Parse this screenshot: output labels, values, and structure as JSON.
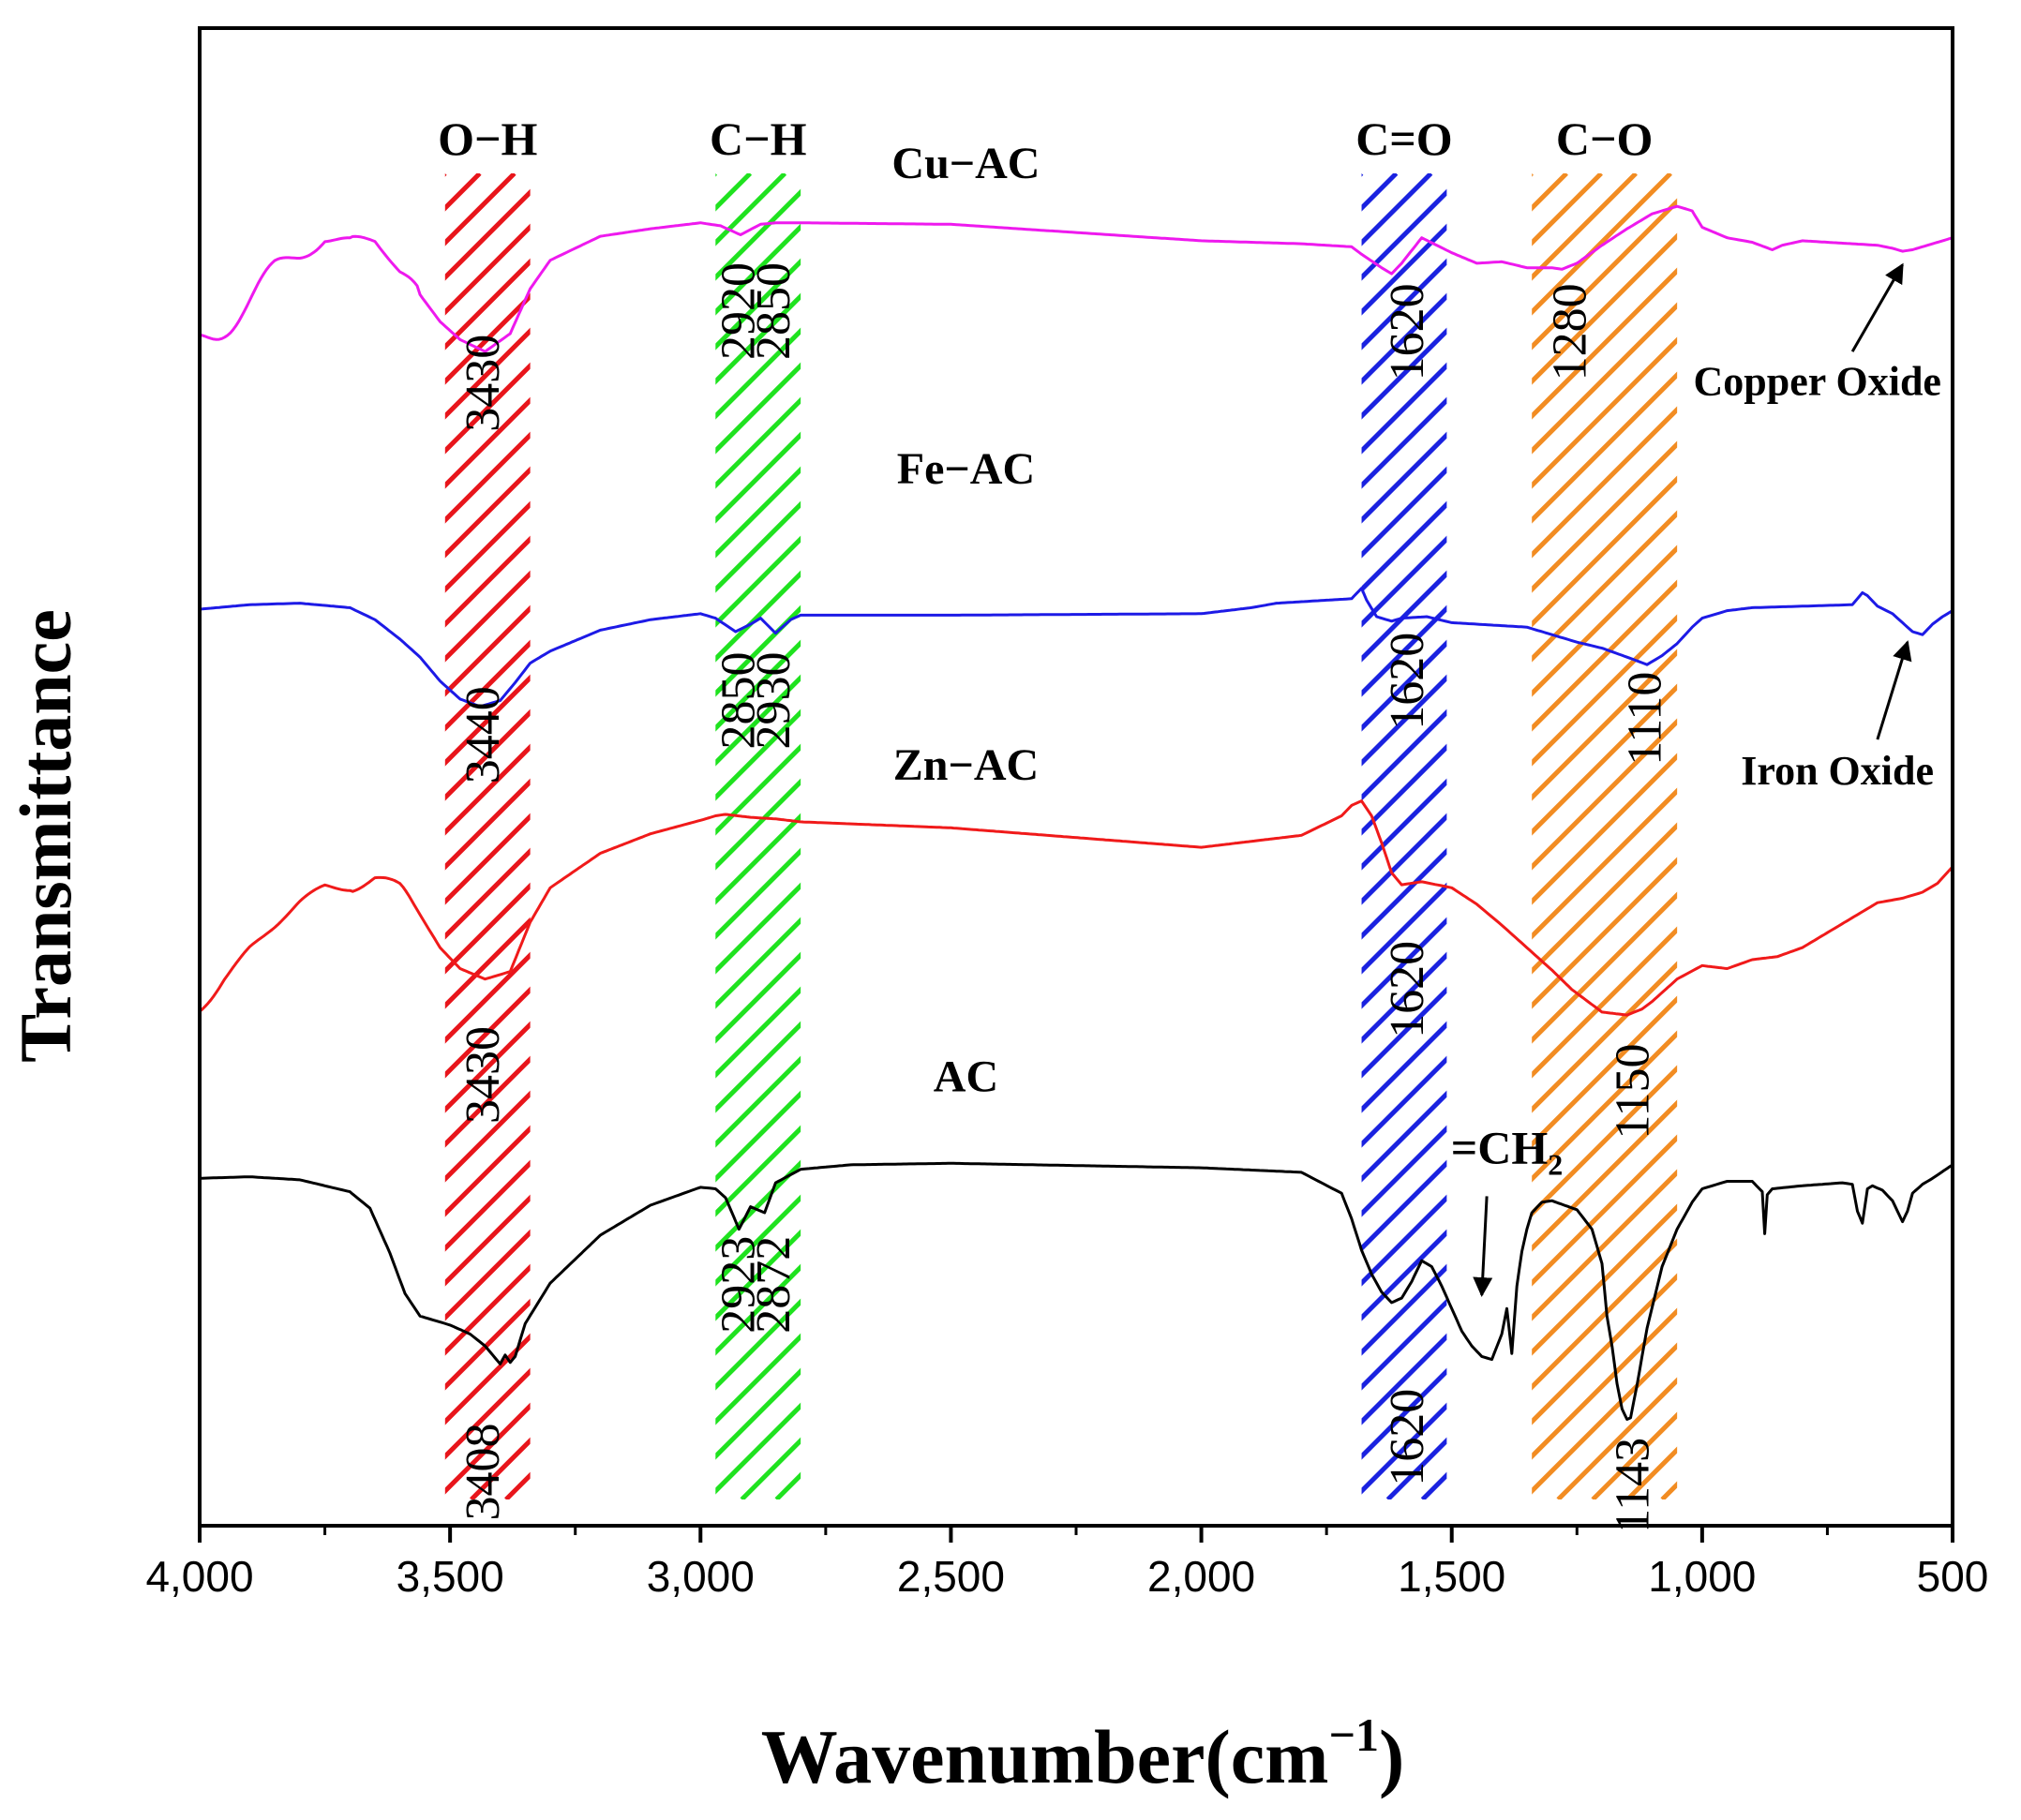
{
  "chart_data": {
    "type": "line",
    "title": "",
    "xlabel": "Wavenumber(cm",
    "xlabel_sup": "−1",
    "xlabel_close": ")",
    "ylabel": "Transmittance",
    "xlim": [
      4000,
      500
    ],
    "ylim": [
      0,
      100
    ],
    "y_ticks_shown": false,
    "x_ticks": [
      4000,
      3500,
      3000,
      2500,
      2000,
      1500,
      1000,
      500
    ],
    "x_tick_labels": [
      "4,000",
      "3,500",
      "3,000",
      "2,500",
      "2,000",
      "1,500",
      "1,000",
      "500"
    ],
    "bands": [
      {
        "label": "O−H",
        "from": 3510,
        "to": 3340,
        "color": "#e8151b"
      },
      {
        "label": "C−H",
        "from": 2970,
        "to": 2800,
        "color": "#1fe21f"
      },
      {
        "label": "C=O",
        "from": 1680,
        "to": 1510,
        "color": "#1a22e0"
      },
      {
        "label": "C−O",
        "from": 1340,
        "to": 1050,
        "color": "#f28c22"
      }
    ],
    "series": [
      {
        "name": "Cu−AC",
        "color": "#ee19ee",
        "noise": "left",
        "x": [
          4000,
          3950,
          3900,
          3850,
          3800,
          3750,
          3700,
          3650,
          3600,
          3560,
          3520,
          3480,
          3430,
          3380,
          3340,
          3300,
          3200,
          3100,
          3000,
          2960,
          2920,
          2880,
          2850,
          2800,
          2500,
          2000,
          1800,
          1700,
          1680,
          1640,
          1620,
          1600,
          1560,
          1500,
          1450,
          1400,
          1350,
          1300,
          1280,
          1250,
          1200,
          1150,
          1100,
          1050,
          1020,
          1000,
          950,
          900,
          860,
          840,
          800,
          700,
          650,
          620,
          600,
          580,
          550,
          500
        ],
        "y": [
          78.8,
          80.5,
          82,
          83.6,
          84.8,
          86.2,
          85.8,
          85.6,
          83.8,
          82.2,
          80.4,
          79.2,
          78.4,
          79.6,
          82.6,
          84.5,
          86.1,
          86.6,
          87,
          86.8,
          86.2,
          86.9,
          87.0,
          87.0,
          86.9,
          85.8,
          85.6,
          85.4,
          84.9,
          84.0,
          83.6,
          84.3,
          86.0,
          85.0,
          84.3,
          84.4,
          84.0,
          84.0,
          83.9,
          84.3,
          85.5,
          86.6,
          87.6,
          88.1,
          87.8,
          86.7,
          86,
          85.7,
          85.2,
          85.5,
          85.8,
          85.6,
          85.5,
          85.3,
          85.1,
          85.2,
          85.5,
          86.0
        ]
      },
      {
        "name": "Fe−AC",
        "color": "#1d1ae6",
        "noise": "none",
        "x": [
          4000,
          3900,
          3800,
          3700,
          3650,
          3600,
          3560,
          3520,
          3480,
          3440,
          3400,
          3370,
          3340,
          3300,
          3200,
          3100,
          3000,
          2970,
          2930,
          2900,
          2880,
          2850,
          2820,
          2800,
          2500,
          2000,
          1900,
          1850,
          1800,
          1750,
          1700,
          1680,
          1670,
          1650,
          1620,
          1600,
          1550,
          1500,
          1450,
          1350,
          1300,
          1250,
          1200,
          1150,
          1110,
          1080,
          1050,
          1020,
          1000,
          950,
          900,
          800,
          700,
          680,
          670,
          650,
          620,
          600,
          580,
          560,
          540,
          520,
          500
        ],
        "y": [
          61.2,
          61.5,
          61.6,
          61.3,
          60.5,
          59.2,
          58,
          56.4,
          55.2,
          54.7,
          55.1,
          56.3,
          57.6,
          58.4,
          59.8,
          60.5,
          60.9,
          60.6,
          59.7,
          60.2,
          60.6,
          59.6,
          60.5,
          60.8,
          60.8,
          60.9,
          61.3,
          61.6,
          61.7,
          61.8,
          61.9,
          62.6,
          61.8,
          60.7,
          60.4,
          60.6,
          60.7,
          60.3,
          60.2,
          60.0,
          59.5,
          59.0,
          58.6,
          58.0,
          57.5,
          58.1,
          58.9,
          60.0,
          60.6,
          61.1,
          61.3,
          61.4,
          61.5,
          62.3,
          62.1,
          61.4,
          60.9,
          60.3,
          59.7,
          59.5,
          60.2,
          60.7,
          61.1
        ]
      },
      {
        "name": "Zn−AC",
        "color": "#f01a1a",
        "noise": "left",
        "x": [
          4000,
          3950,
          3900,
          3850,
          3800,
          3750,
          3700,
          3650,
          3600,
          3560,
          3520,
          3480,
          3430,
          3380,
          3340,
          3300,
          3200,
          3100,
          3000,
          2970,
          2950,
          2900,
          2850,
          2800,
          2500,
          2000,
          1800,
          1720,
          1700,
          1680,
          1660,
          1640,
          1620,
          1600,
          1560,
          1500,
          1450,
          1400,
          1350,
          1300,
          1260,
          1200,
          1150,
          1120,
          1100,
          1050,
          1000,
          950,
          900,
          850,
          800,
          700,
          650,
          600,
          560,
          530,
          500
        ],
        "y": [
          34.5,
          36.8,
          38.6,
          40,
          41.5,
          42.7,
          42.8,
          43.2,
          42.5,
          40.8,
          38.6,
          37.2,
          36.5,
          37.0,
          40.3,
          42.6,
          44.9,
          46.2,
          47.1,
          47.4,
          47.5,
          47.3,
          47.2,
          47.0,
          46.6,
          45.3,
          46.1,
          47.4,
          48.1,
          48.4,
          47.4,
          45.6,
          43.6,
          42.8,
          43.0,
          42.6,
          41.5,
          40.1,
          38.6,
          37.1,
          35.8,
          34.3,
          34.1,
          34.5,
          35.0,
          36.5,
          37.4,
          37.2,
          37.8,
          38.0,
          38.6,
          40.6,
          41.6,
          41.9,
          42.3,
          42.9,
          44.0
        ]
      },
      {
        "name": "AC",
        "color": "#000000",
        "noise": "none",
        "x": [
          4000,
          3900,
          3800,
          3700,
          3660,
          3620,
          3590,
          3560,
          3540,
          3500,
          3460,
          3430,
          3410,
          3400,
          3390,
          3380,
          3370,
          3350,
          3300,
          3200,
          3100,
          3000,
          2970,
          2950,
          2923,
          2900,
          2872,
          2850,
          2800,
          2700,
          2500,
          2000,
          1800,
          1720,
          1700,
          1680,
          1660,
          1640,
          1620,
          1600,
          1580,
          1560,
          1540,
          1520,
          1500,
          1480,
          1460,
          1440,
          1420,
          1400,
          1390,
          1380,
          1370,
          1360,
          1350,
          1340,
          1320,
          1300,
          1250,
          1220,
          1200,
          1190,
          1180,
          1170,
          1160,
          1150,
          1143,
          1130,
          1110,
          1080,
          1050,
          1020,
          1000,
          950,
          900,
          880,
          875,
          870,
          860,
          800,
          720,
          700,
          690,
          680,
          670,
          660,
          640,
          620,
          600,
          590,
          580,
          560,
          540,
          500
        ],
        "y": [
          23.2,
          23.3,
          23.1,
          22.3,
          21.2,
          18.2,
          15.5,
          14.0,
          13.8,
          13.4,
          12.8,
          12.0,
          11.2,
          10.8,
          11.4,
          10.9,
          11.3,
          13.5,
          16.2,
          19.4,
          21.4,
          22.6,
          22.5,
          21.9,
          19.8,
          21.3,
          20.9,
          22.9,
          23.8,
          24.1,
          24.2,
          23.9,
          23.6,
          22.2,
          20.5,
          18.4,
          16.8,
          15.6,
          14.9,
          15.2,
          16.3,
          17.7,
          17.3,
          16.0,
          14.5,
          13.0,
          12.0,
          11.3,
          11.1,
          12.8,
          14.5,
          11.5,
          16.0,
          18.3,
          19.8,
          20.9,
          21.6,
          21.7,
          21.1,
          19.8,
          17.5,
          14.0,
          12.0,
          9.5,
          7.8,
          7.1,
          7.2,
          9.4,
          13.2,
          17.3,
          19.8,
          21.6,
          22.5,
          23.0,
          23.0,
          22.3,
          19.5,
          22.1,
          22.5,
          22.7,
          22.9,
          22.8,
          21.0,
          20.2,
          22.5,
          22.7,
          22.4,
          21.7,
          20.3,
          21.0,
          22.2,
          22.8,
          23.2,
          24.1
        ]
      }
    ],
    "curve_labels": [
      {
        "series": "Cu−AC",
        "text": "Cu−AC",
        "x": 2470,
        "y": 90.0
      },
      {
        "series": "Fe−AC",
        "text": "Fe−AC",
        "x": 2470,
        "y": 69.6
      },
      {
        "series": "Zn−AC",
        "text": "Zn−AC",
        "x": 2470,
        "y": 49.8
      },
      {
        "series": "AC",
        "text": "AC",
        "x": 2470,
        "y": 29.0
      }
    ],
    "annotations": [
      {
        "text": "3430",
        "x": 3425,
        "y": 76.3,
        "vertical": true
      },
      {
        "text": "2920",
        "x": 2915,
        "y": 81.1,
        "vertical": true
      },
      {
        "text": "2850",
        "x": 2845,
        "y": 81.1,
        "vertical": true
      },
      {
        "text": "1620",
        "x": 1580,
        "y": 79.7,
        "vertical": true
      },
      {
        "text": "1280",
        "x": 1255,
        "y": 79.7,
        "vertical": true
      },
      {
        "text": "3440",
        "x": 3425,
        "y": 52.8,
        "vertical": true
      },
      {
        "text": "2850",
        "x": 2915,
        "y": 55.1,
        "vertical": true
      },
      {
        "text": "2930",
        "x": 2845,
        "y": 55.1,
        "vertical": true
      },
      {
        "text": "1620",
        "x": 1580,
        "y": 56.4,
        "vertical": true
      },
      {
        "text": "1110",
        "x": 1105,
        "y": 53.9,
        "vertical": true
      },
      {
        "text": "3430",
        "x": 3425,
        "y": 30.1,
        "vertical": true
      },
      {
        "text": "1620",
        "x": 1580,
        "y": 35.8,
        "vertical": true
      },
      {
        "text": "1150",
        "x": 1130,
        "y": 29.0,
        "vertical": true
      },
      {
        "text": "2923",
        "x": 2915,
        "y": 16.1,
        "vertical": true
      },
      {
        "text": "2872",
        "x": 2845,
        "y": 16.1,
        "vertical": true
      },
      {
        "text": "3408",
        "x": 3425,
        "y": 3.6,
        "vertical": true
      },
      {
        "text": "1620",
        "x": 1580,
        "y": 5.9,
        "vertical": true
      },
      {
        "text": "1143",
        "x": 1130,
        "y": 2.7,
        "vertical": true
      }
    ],
    "callouts": [
      {
        "text": "Copper Oxide",
        "label_x": 770,
        "label_y": 75.5,
        "arrow_from": [
          700,
          78.4
        ],
        "arrow_to": [
          600,
          84.2
        ]
      },
      {
        "text": "Iron Oxide",
        "label_x": 730,
        "label_y": 49.5,
        "arrow_from": [
          650,
          52.5
        ],
        "arrow_to": [
          590,
          59.0
        ]
      }
    ],
    "ch2_label": {
      "text": "=CH",
      "sub": "2",
      "label_x": 1390,
      "label_y": 24.2,
      "arrow_from": [
        1430,
        22.0
      ],
      "arrow_to": [
        1440,
        15.4
      ]
    }
  }
}
